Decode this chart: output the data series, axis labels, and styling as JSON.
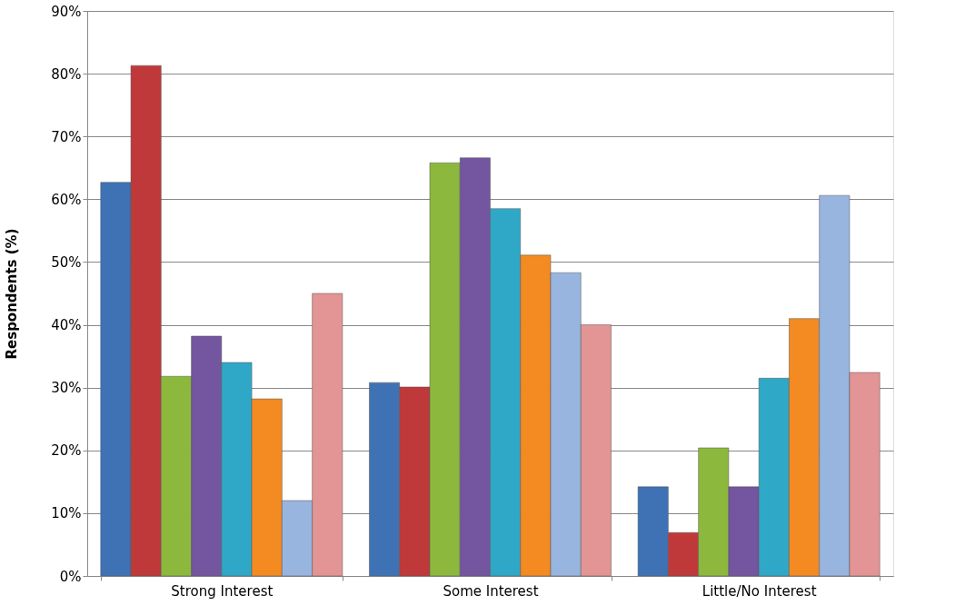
{
  "chart_data": {
    "type": "bar",
    "ylabel": "Respondents (%)",
    "categories": [
      "Strong Interest",
      "Some Interest",
      "Little/No Interest"
    ],
    "series": [
      {
        "color": "#3f72b5",
        "values": [
          62.7,
          30.8,
          14.2
        ]
      },
      {
        "color": "#c0393a",
        "values": [
          81.3,
          30.1,
          6.9
        ]
      },
      {
        "color": "#8db83e",
        "values": [
          31.8,
          65.8,
          20.4
        ]
      },
      {
        "color": "#7355a0",
        "values": [
          38.2,
          66.6,
          14.2
        ]
      },
      {
        "color": "#2fa8c8",
        "values": [
          34.0,
          58.5,
          31.5
        ]
      },
      {
        "color": "#f38a22",
        "values": [
          28.2,
          51.1,
          41.0
        ]
      },
      {
        "color": "#98b5e0",
        "values": [
          12.0,
          48.3,
          60.6
        ]
      },
      {
        "color": "#e39494",
        "values": [
          45.0,
          40.0,
          32.4
        ]
      }
    ],
    "ylim": [
      0,
      90
    ],
    "yticks": [
      {
        "value": 0,
        "label": "0%"
      },
      {
        "value": 10,
        "label": "10%"
      },
      {
        "value": 20,
        "label": "20%"
      },
      {
        "value": 30,
        "label": "30%"
      },
      {
        "value": 40,
        "label": "40%"
      },
      {
        "value": 50,
        "label": "50%"
      },
      {
        "value": 60,
        "label": "60%"
      },
      {
        "value": 70,
        "label": "70%"
      },
      {
        "value": 80,
        "label": "80%"
      },
      {
        "value": 90,
        "label": "90%"
      }
    ],
    "grid": "y",
    "legend": false
  }
}
